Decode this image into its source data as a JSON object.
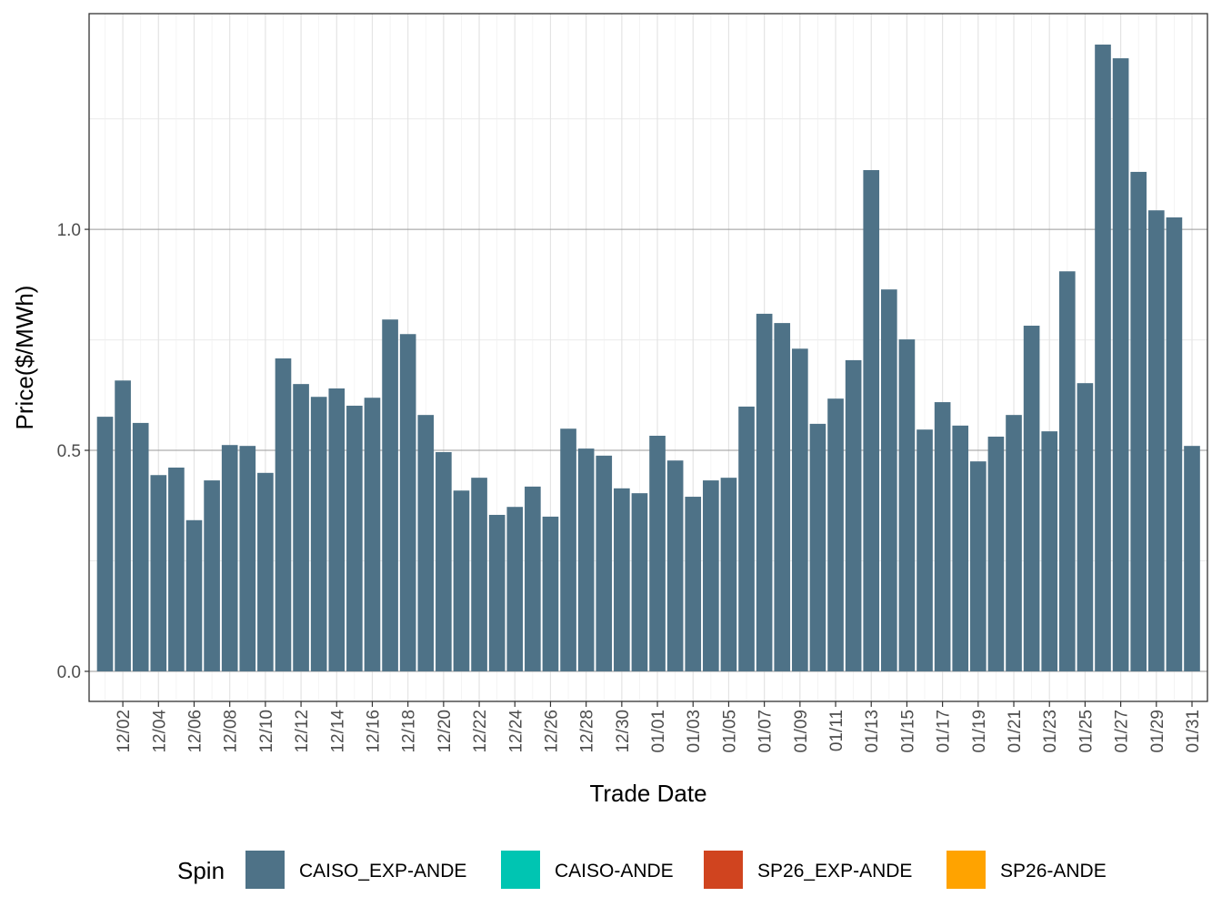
{
  "chart_data": {
    "type": "bar",
    "xlabel": "Trade Date",
    "ylabel": "Price($/MWh)",
    "ylim": [
      -0.068,
      1.488
    ],
    "yticks": [
      "0.0",
      "0.5",
      "1.0"
    ],
    "grid": true,
    "legend_position": "bottom",
    "legend_title": "Spin",
    "legend": [
      {
        "name": "CAISO_EXP-ANDE",
        "color": "#4E7287"
      },
      {
        "name": "CAISO-ANDE",
        "color": "#00C5B2"
      },
      {
        "name": "SP26_EXP-ANDE",
        "color": "#D0441F"
      },
      {
        "name": "SP26-ANDE",
        "color": "#FFA300"
      }
    ],
    "categories": [
      "12/01",
      "12/02",
      "12/03",
      "12/04",
      "12/05",
      "12/06",
      "12/07",
      "12/08",
      "12/09",
      "12/10",
      "12/11",
      "12/12",
      "12/13",
      "12/14",
      "12/15",
      "12/16",
      "12/17",
      "12/18",
      "12/19",
      "12/20",
      "12/21",
      "12/22",
      "12/23",
      "12/24",
      "12/25",
      "12/26",
      "12/27",
      "12/28",
      "12/29",
      "12/30",
      "12/31",
      "01/01",
      "01/02",
      "01/03",
      "01/04",
      "01/05",
      "01/06",
      "01/07",
      "01/08",
      "01/09",
      "01/10",
      "01/11",
      "01/12",
      "01/13",
      "01/14",
      "01/15",
      "01/16",
      "01/17",
      "01/18",
      "01/19",
      "01/20",
      "01/21",
      "01/22",
      "01/23",
      "01/24",
      "01/25",
      "01/26",
      "01/27",
      "01/28",
      "01/29",
      "01/30",
      "01/31"
    ],
    "series": [
      {
        "name": "CAISO_EXP-ANDE",
        "values": [
          0.576,
          0.658,
          0.562,
          0.444,
          0.461,
          0.342,
          0.432,
          0.512,
          0.51,
          0.449,
          0.708,
          0.65,
          0.621,
          0.64,
          0.601,
          0.619,
          0.796,
          0.763,
          0.58,
          0.496,
          0.409,
          0.438,
          0.354,
          0.372,
          0.418,
          0.35,
          0.549,
          0.504,
          0.488,
          0.414,
          0.403,
          0.533,
          0.477,
          0.395,
          0.432,
          0.438,
          0.599,
          0.809,
          0.788,
          0.73,
          0.56,
          0.617,
          0.704,
          1.134,
          0.864,
          0.751,
          0.547,
          0.609,
          0.556,
          0.475,
          0.531,
          0.58,
          0.782,
          0.543,
          0.905,
          0.652,
          1.418,
          1.387,
          1.13,
          1.043,
          1.027,
          0.51
        ]
      }
    ],
    "xtick_labels": [
      "12/02",
      "12/04",
      "12/06",
      "12/08",
      "12/10",
      "12/12",
      "12/14",
      "12/16",
      "12/18",
      "12/20",
      "12/22",
      "12/24",
      "12/26",
      "12/28",
      "12/30",
      "01/01",
      "01/03",
      "01/05",
      "01/07",
      "01/09",
      "01/11",
      "01/13",
      "01/15",
      "01/17",
      "01/19",
      "01/21",
      "01/23",
      "01/25",
      "01/27",
      "01/29",
      "01/31"
    ]
  }
}
